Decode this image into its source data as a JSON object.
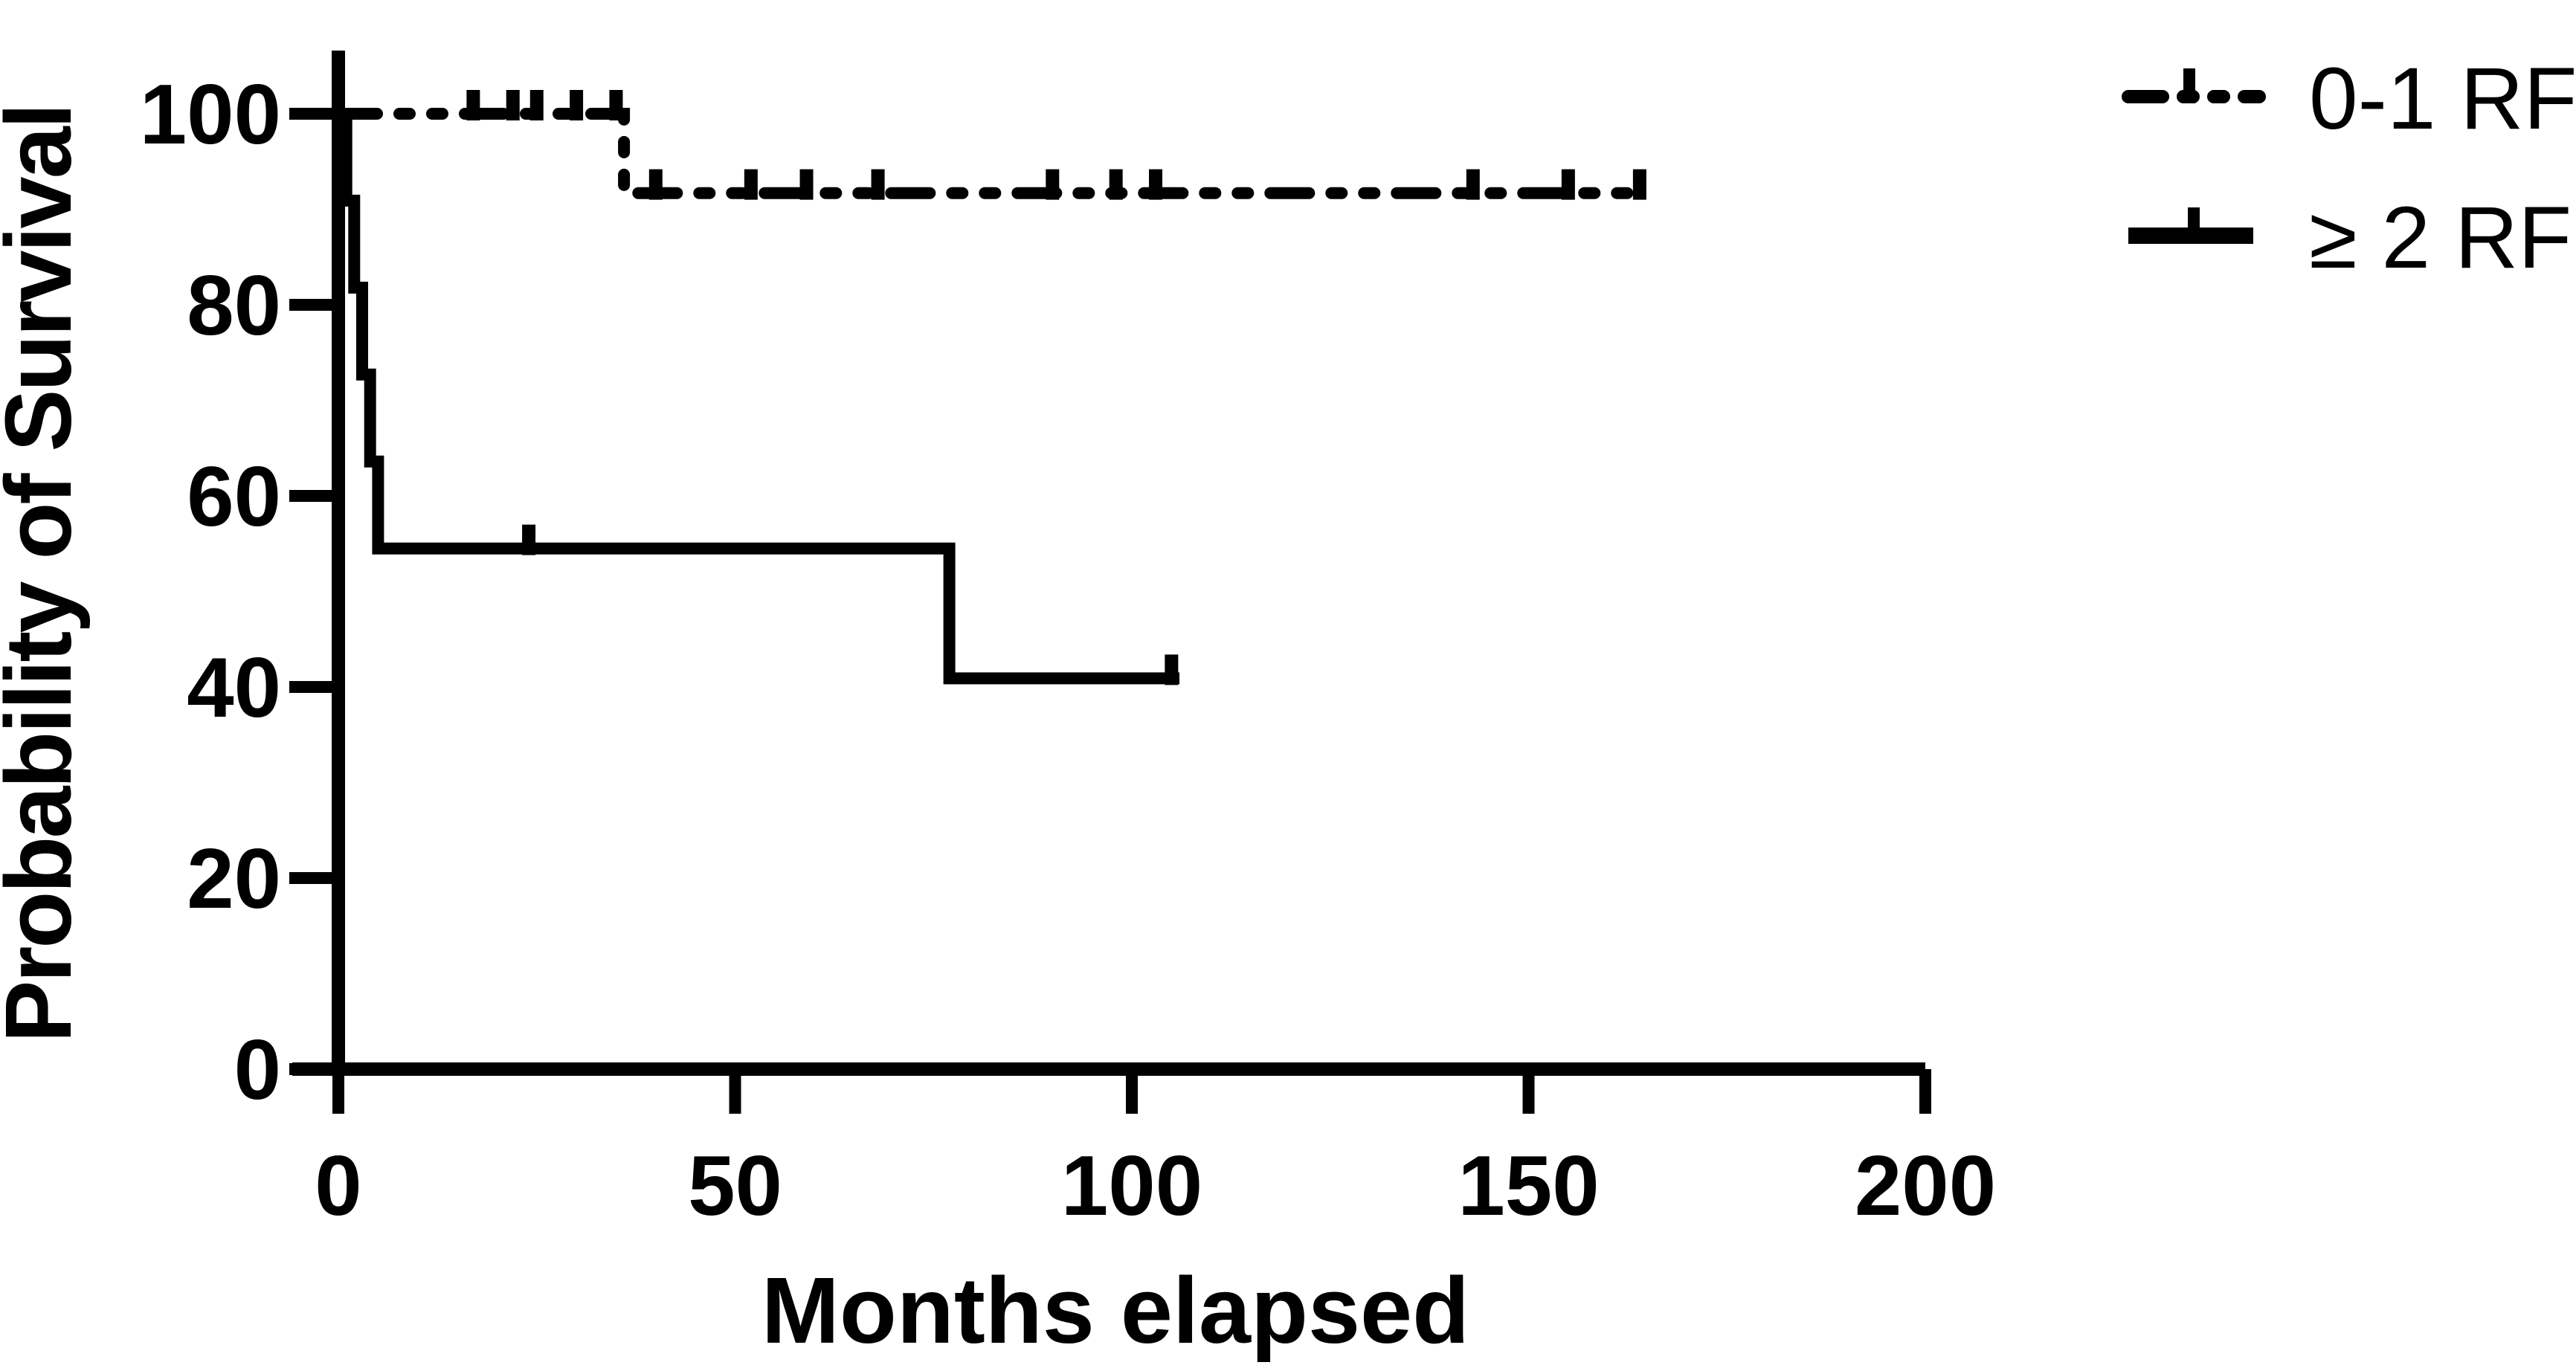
{
  "figure": {
    "background_color": "#ffffff",
    "ink_color": "#000000",
    "x_axis": {
      "title": "Months elapsed",
      "ticks": [
        "0",
        "50",
        "100",
        "150",
        "200"
      ]
    },
    "y_axis": {
      "title": "Probability of Survival",
      "ticks": [
        "0",
        "20",
        "40",
        "60",
        "80",
        "100"
      ]
    },
    "legend": {
      "items": [
        {
          "label": "0-1 RF",
          "swatch": "dash-dot-dot-line-with-censor-tick"
        },
        {
          "label": "≥ 2 RF",
          "swatch": "solid-line-with-censor-tick"
        }
      ]
    }
  },
  "chart_data": {
    "type": "line",
    "subtype": "kaplan-meier-step",
    "title": "",
    "xlabel": "Months elapsed",
    "ylabel": "Probability of Survival",
    "xlim": [
      0,
      200
    ],
    "ylim": [
      0,
      110
    ],
    "x_ticks": [
      0,
      50,
      100,
      150,
      200
    ],
    "y_ticks": [
      0,
      20,
      40,
      60,
      80,
      100
    ],
    "grid": false,
    "legend_position": "top-right",
    "series": [
      {
        "name": "0-1 RF",
        "slug": "0-1-rf",
        "color": "#000000",
        "line_style": "dash-dot-dot",
        "step_points": [
          [
            0,
            100
          ],
          [
            36,
            100
          ],
          [
            36,
            91.7
          ],
          [
            165,
            91.7
          ]
        ],
        "censor_marks": [
          [
            17,
            100
          ],
          [
            22,
            100
          ],
          [
            25,
            100
          ],
          [
            30,
            100
          ],
          [
            35,
            100
          ],
          [
            40,
            91.7
          ],
          [
            52,
            91.7
          ],
          [
            59,
            91.7
          ],
          [
            68,
            91.7
          ],
          [
            90,
            91.7
          ],
          [
            98,
            91.7
          ],
          [
            103,
            91.7
          ],
          [
            143,
            91.7
          ],
          [
            155,
            91.7
          ],
          [
            164,
            91.7
          ]
        ]
      },
      {
        "name": "≥ 2 RF",
        "slug": "ge-2-rf",
        "color": "#000000",
        "line_style": "solid",
        "step_points": [
          [
            0,
            100
          ],
          [
            1,
            100
          ],
          [
            1,
            90.9
          ],
          [
            2,
            90.9
          ],
          [
            2,
            81.8
          ],
          [
            3,
            81.8
          ],
          [
            3,
            72.7
          ],
          [
            4,
            72.7
          ],
          [
            4,
            63.6
          ],
          [
            5,
            63.6
          ],
          [
            5,
            54.5
          ],
          [
            77,
            54.5
          ],
          [
            77,
            40.9
          ],
          [
            106,
            40.9
          ]
        ],
        "censor_marks": [
          [
            24,
            54.5
          ],
          [
            105,
            40.9
          ]
        ]
      }
    ]
  }
}
